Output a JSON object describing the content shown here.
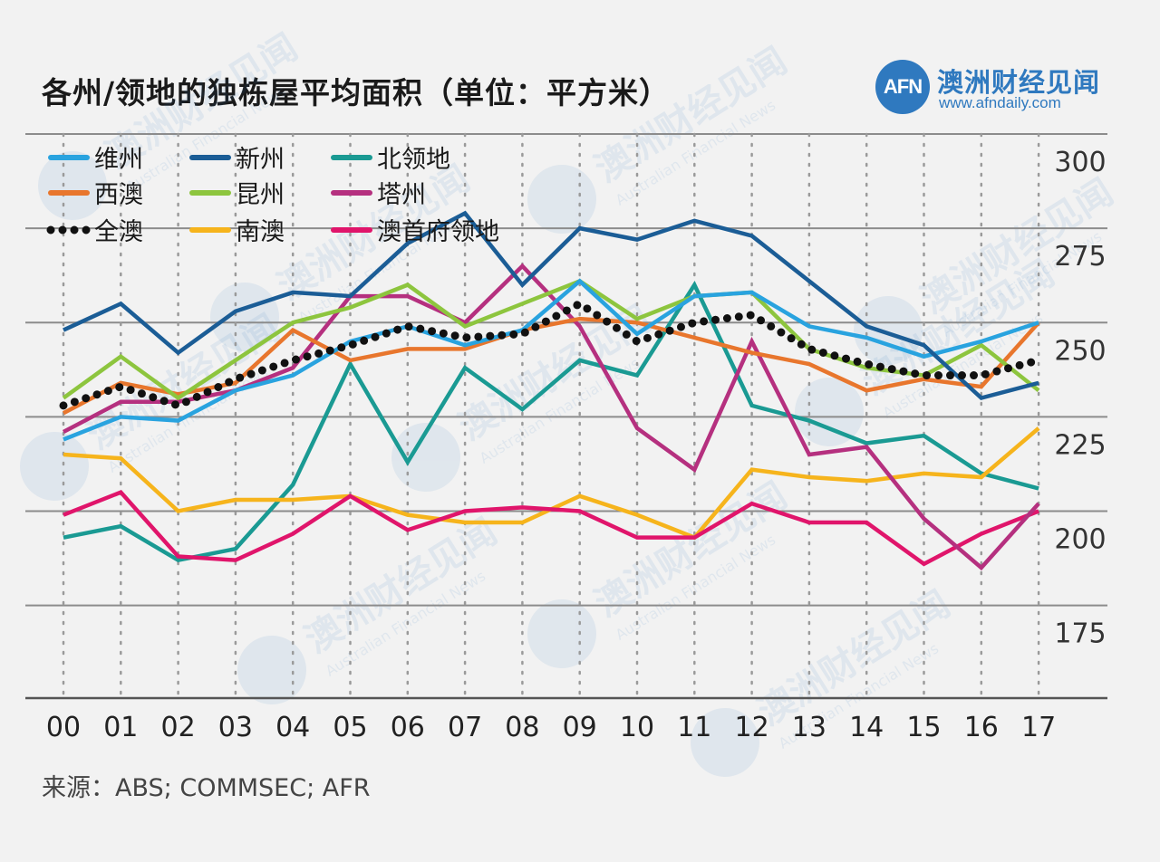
{
  "title": "各州/领地的独栋屋平均面积（单位：平方米）",
  "brand": {
    "logo_text": "AFN",
    "name": "澳洲财经见闻",
    "url": "www.afndaily.com",
    "watermark_cn": "澳洲财经见闻",
    "watermark_en": "Australian Financial News"
  },
  "source": "来源：ABS; COMMSEC; AFR",
  "colors": {
    "background": "#f2f2f2",
    "brand": "#2f79bf",
    "gridline": "#8c8c8c"
  },
  "chart_data": {
    "type": "line",
    "title": "各州/领地的独栋屋平均面积（单位：平方米）",
    "xlabel": "",
    "ylabel": "",
    "x": [
      "00",
      "01",
      "02",
      "03",
      "04",
      "05",
      "06",
      "07",
      "08",
      "09",
      "10",
      "11",
      "12",
      "13",
      "14",
      "15",
      "16",
      "17"
    ],
    "ylim": [
      165,
      300
    ],
    "yticks": [
      175,
      200,
      225,
      250,
      275,
      300
    ],
    "y_axis_position": "right",
    "grid": true,
    "legend_position": "top-left",
    "series": [
      {
        "name": "维州",
        "color": "#29a3df",
        "style": "solid",
        "values": [
          219,
          225,
          224,
          232,
          236,
          245,
          249,
          244,
          248,
          261,
          247,
          257,
          258,
          249,
          246,
          241,
          245,
          250
        ]
      },
      {
        "name": "新州",
        "color": "#1b5d96",
        "style": "solid",
        "values": [
          248,
          255,
          242,
          253,
          258,
          257,
          271,
          279,
          260,
          275,
          272,
          277,
          273,
          261,
          249,
          244,
          230,
          234
        ]
      },
      {
        "name": "北领地",
        "color": "#1a9a93",
        "style": "solid",
        "values": [
          193,
          196,
          187,
          190,
          207,
          239,
          213,
          238,
          227,
          240,
          236,
          260,
          228,
          224,
          218,
          220,
          210,
          206
        ]
      },
      {
        "name": "西澳",
        "color": "#e8762d",
        "style": "solid",
        "values": [
          226,
          234,
          231,
          234,
          248,
          240,
          243,
          243,
          248,
          251,
          250,
          246,
          242,
          239,
          232,
          235,
          233,
          250
        ]
      },
      {
        "name": "昆州",
        "color": "#8dc53e",
        "style": "solid",
        "values": [
          230,
          241,
          230,
          240,
          250,
          254,
          260,
          249,
          255,
          261,
          251,
          257,
          258,
          243,
          238,
          236,
          244,
          232
        ]
      },
      {
        "name": "塔州",
        "color": "#b5307f",
        "style": "solid",
        "values": [
          221,
          229,
          229,
          232,
          238,
          257,
          257,
          250,
          265,
          249,
          222,
          211,
          245,
          215,
          217,
          198,
          185,
          202
        ]
      },
      {
        "name": "全澳",
        "color": "#111111",
        "style": "dotted",
        "values": [
          228,
          233,
          228,
          235,
          240,
          244,
          249,
          246,
          247,
          255,
          245,
          250,
          252,
          243,
          239,
          236,
          236,
          240
        ]
      },
      {
        "name": "南澳",
        "color": "#f6b41c",
        "style": "solid",
        "values": [
          215,
          214,
          200,
          203,
          203,
          204,
          199,
          197,
          197,
          204,
          199,
          193,
          211,
          209,
          208,
          210,
          209,
          222
        ]
      },
      {
        "name": "澳首府领地",
        "color": "#e0156b",
        "style": "solid",
        "values": [
          199,
          205,
          188,
          187,
          194,
          204,
          195,
          200,
          201,
          200,
          193,
          193,
          202,
          197,
          197,
          186,
          194,
          200
        ]
      }
    ]
  }
}
